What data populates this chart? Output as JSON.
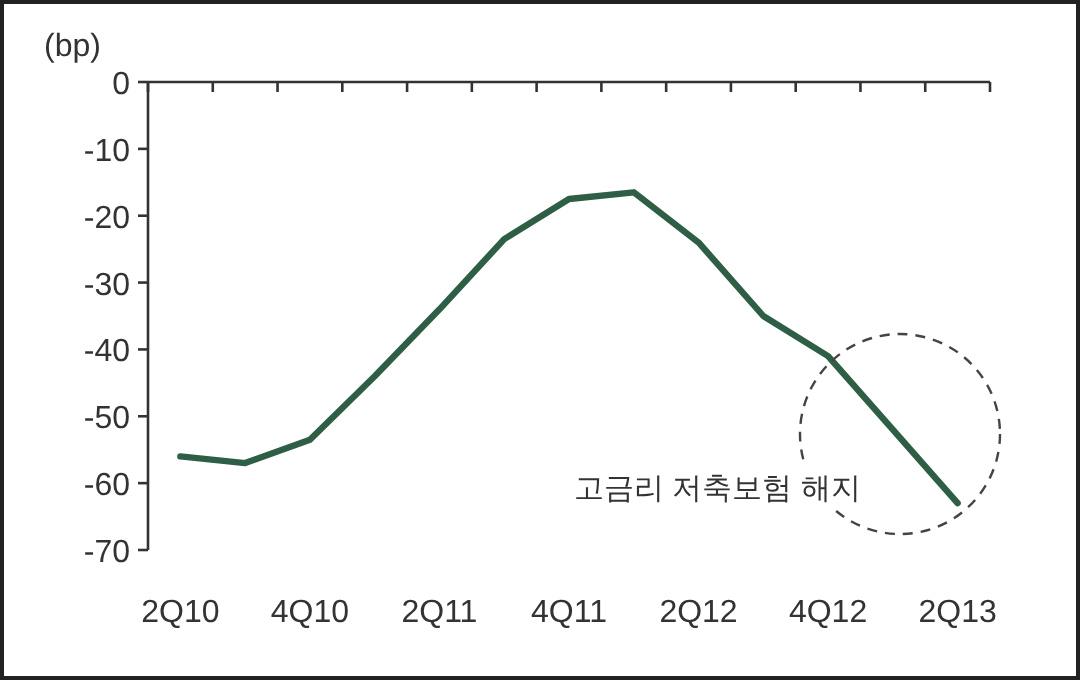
{
  "chart_data": {
    "type": "line",
    "ylabel": "(bp)",
    "categories": [
      "2Q10",
      null,
      "4Q10",
      null,
      "2Q11",
      null,
      "4Q11",
      null,
      "2Q12",
      null,
      "4Q12",
      null,
      "2Q13"
    ],
    "series": [
      {
        "color": "#2e5e45",
        "values": [
          -56,
          -57,
          -53.5,
          -44,
          -34,
          -23.5,
          -17.5,
          -16.5,
          -24,
          -35,
          -41,
          -52,
          -63
        ]
      }
    ],
    "ylim": [
      -70,
      0
    ],
    "yticks": [
      0,
      -10,
      -20,
      -30,
      -40,
      -50,
      -60,
      -70
    ],
    "annotations": [
      "고금리 저축보험 해지"
    ]
  }
}
